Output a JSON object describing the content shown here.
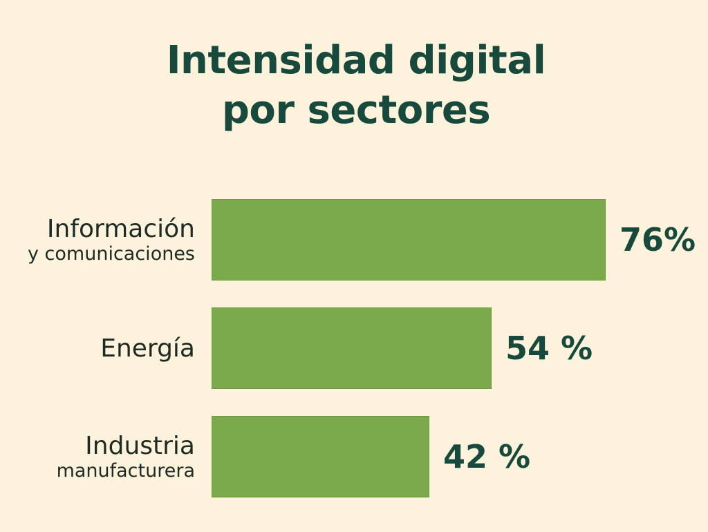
{
  "chart_data": {
    "type": "bar",
    "orientation": "horizontal",
    "title": [
      "Intensidad digital",
      "por sectores"
    ],
    "categories": [
      [
        "Información",
        "y comunicaciones"
      ],
      [
        "Energía"
      ],
      [
        "Industria",
        "manufacturera"
      ]
    ],
    "values": [
      76,
      54,
      42
    ],
    "value_labels": [
      "76%",
      "54 %",
      "42 %"
    ],
    "unit": "%",
    "grid": false,
    "legend": "none",
    "colors": {
      "background": "#fdf3dc",
      "bar": "#7aaa4c",
      "title": "#174a3c",
      "value_label": "#174a3c",
      "category_label": "#1e2a24"
    }
  }
}
